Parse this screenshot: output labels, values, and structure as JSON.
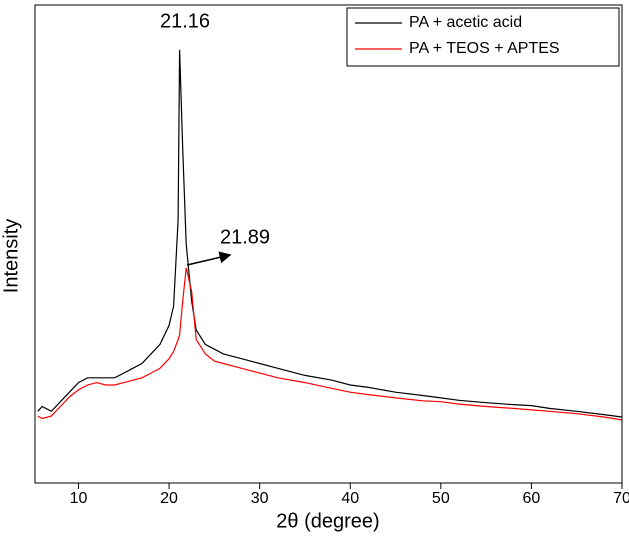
{
  "chart_data": {
    "type": "line",
    "x_label": "2θ (degree)",
    "y_label": "Intensity",
    "x": [
      5.5,
      6,
      7,
      8,
      9,
      10,
      11,
      12,
      13,
      14,
      15,
      16,
      17,
      18,
      19,
      20,
      20.5,
      21,
      21.16,
      21.5,
      21.89,
      22.5,
      23,
      24,
      25,
      26,
      28,
      30,
      32,
      35,
      38,
      40,
      42,
      45,
      48,
      50,
      52,
      55,
      58,
      60,
      62,
      65,
      68,
      70
    ],
    "series": [
      {
        "name": "PA + acetic acid",
        "color": "#000000",
        "values": [
          15,
          16,
          15,
          17,
          19,
          21,
          22,
          22,
          22,
          22,
          23,
          24,
          25,
          27,
          29,
          33,
          37,
          55,
          90.6,
          70,
          50,
          38,
          32,
          29,
          28,
          27,
          26,
          25,
          24,
          22.5,
          21.5,
          20.5,
          20,
          19,
          18.3,
          17.8,
          17.3,
          16.8,
          16.4,
          16.2,
          15.6,
          15,
          14.3,
          13.8
        ]
      },
      {
        "name": "PA + TEOS + APTES",
        "color": "#ff0000",
        "values": [
          14,
          13.5,
          14,
          16,
          18,
          19.5,
          20.5,
          21,
          20.5,
          20.5,
          21,
          21.5,
          22,
          23,
          24,
          26,
          27.5,
          30,
          31,
          38,
          45,
          40,
          30,
          27,
          25.5,
          25,
          24,
          23,
          22,
          21,
          19.8,
          19,
          18.5,
          17.8,
          17.2,
          17,
          16.5,
          16,
          15.6,
          15.3,
          15,
          14.5,
          13.8,
          13.2
        ]
      }
    ],
    "annotations": [
      "21.16",
      "21.89"
    ],
    "xlim": [
      5.2,
      70
    ],
    "ylim": [
      0,
      100
    ],
    "xticks": [
      10,
      20,
      30,
      40,
      50,
      60,
      70
    ],
    "legend": "upper right"
  }
}
